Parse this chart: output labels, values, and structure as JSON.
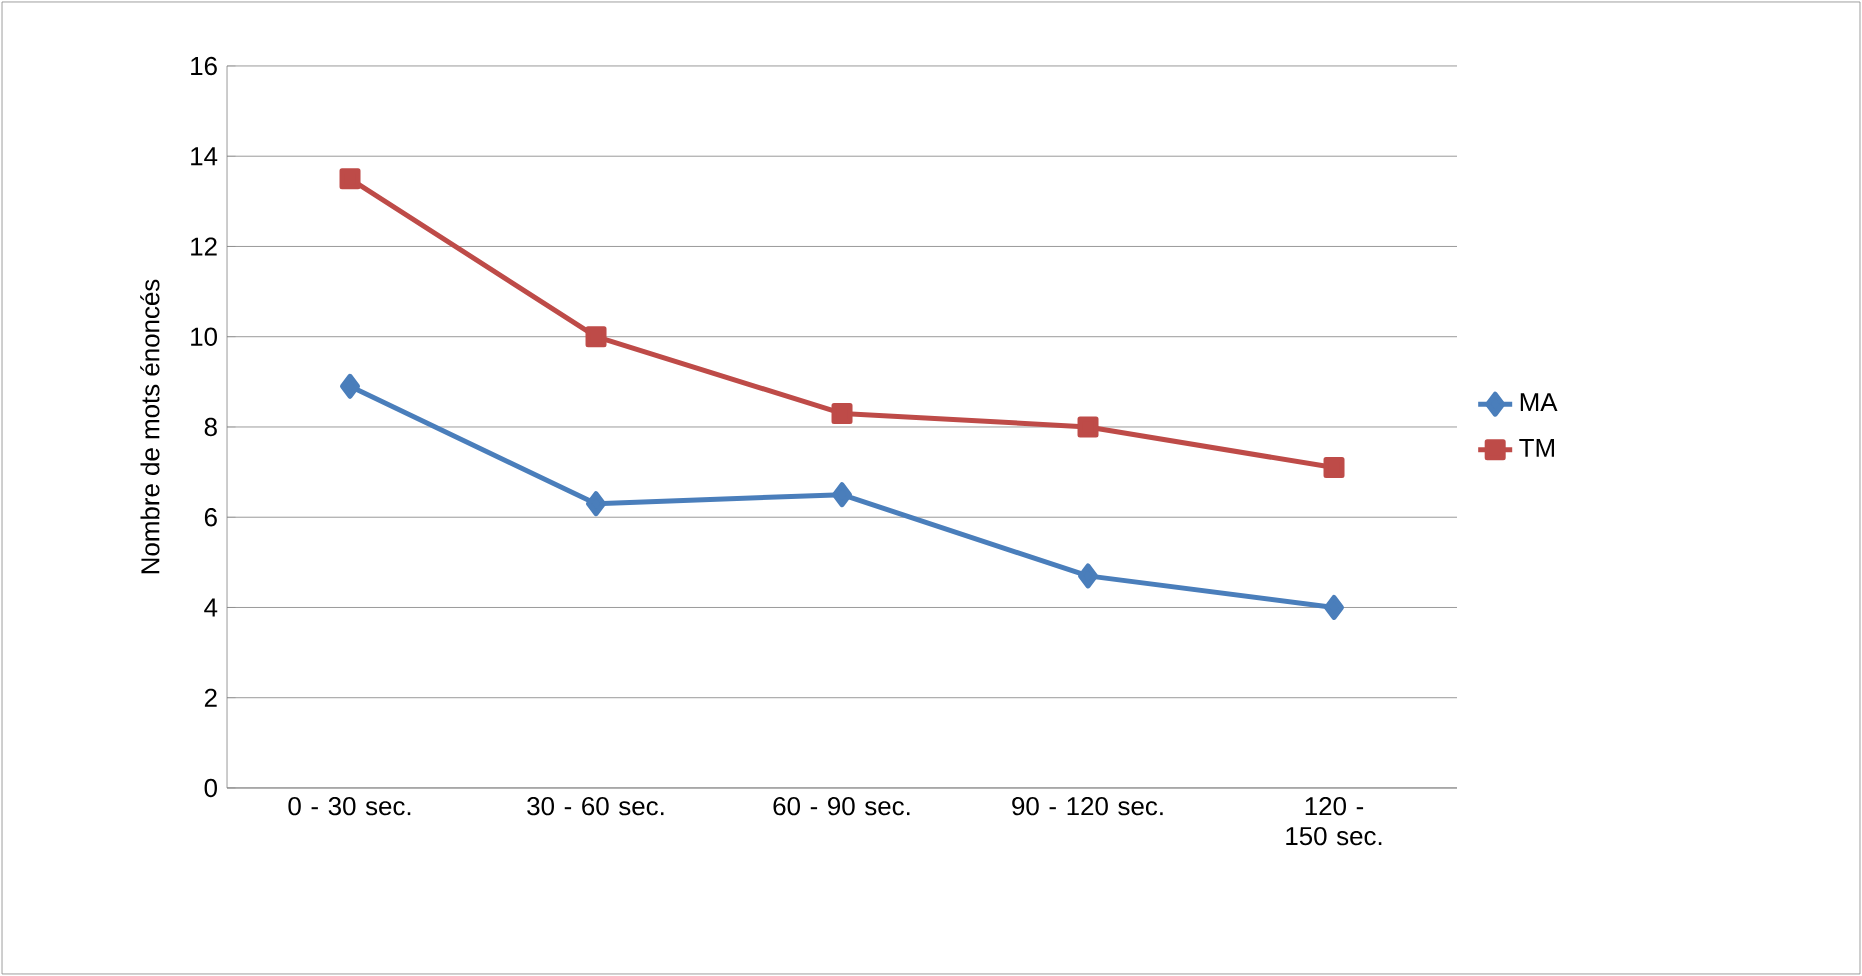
{
  "chart_data": {
    "type": "line",
    "ylabel": "Nombre de mots énoncés",
    "categories": [
      "0 - 30 sec.",
      "30 - 60 sec.",
      "60 - 90 sec.",
      "90 - 120 sec.",
      "120 - 150 sec."
    ],
    "series": [
      {
        "name": "MA",
        "color": "#4a7ebb",
        "marker": "diamond",
        "values": [
          8.9,
          6.3,
          6.5,
          4.7,
          4.0
        ]
      },
      {
        "name": "TM",
        "color": "#be4b48",
        "marker": "square",
        "values": [
          13.5,
          10.0,
          8.3,
          8.0,
          7.1
        ]
      }
    ],
    "ylim": [
      0,
      16
    ],
    "yticks": [
      0,
      2,
      4,
      6,
      8,
      10,
      12,
      14,
      16
    ],
    "grid": "y",
    "legend": "right"
  }
}
